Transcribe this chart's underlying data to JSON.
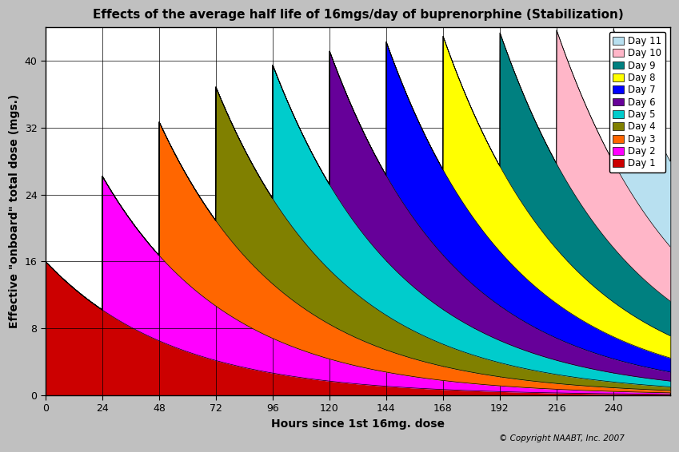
{
  "title": "Effects of the average half life of 16mgs/day of buprenorphine (Stabilization)",
  "xlabel": "Hours since 1st 16mg. dose",
  "ylabel": "Effective \"onboard\" total dose (mgs.)",
  "copyright": "© Copyright NAABT, Inc. 2007",
  "half_life": 37.0,
  "dose_mg": 16,
  "num_days": 11,
  "dose_interval_hours": 24,
  "t_max": 264,
  "ylim": [
    0,
    44
  ],
  "yticks": [
    0,
    8,
    16,
    24,
    32,
    40
  ],
  "xticks": [
    0,
    24,
    48,
    72,
    96,
    120,
    144,
    168,
    192,
    216,
    240
  ],
  "background_color": "#c0c0c0",
  "plot_bg_color": "#ffffff",
  "day_colors": [
    "#cc0000",
    "#ff00ff",
    "#ff6600",
    "#808000",
    "#00cccc",
    "#660099",
    "#0000ff",
    "#ffff00",
    "#008080",
    "#ffb6c8",
    "#b8e0f0"
  ],
  "legend_labels": [
    "Day 11",
    "Day 10",
    "Day 9",
    "Day 8",
    "Day 7",
    "Day 6",
    "Day 5",
    "Day 4",
    "Day 3",
    "Day 2",
    "Day 1"
  ],
  "title_fontsize": 11,
  "label_fontsize": 10,
  "tick_fontsize": 9,
  "legend_fontsize": 8.5
}
